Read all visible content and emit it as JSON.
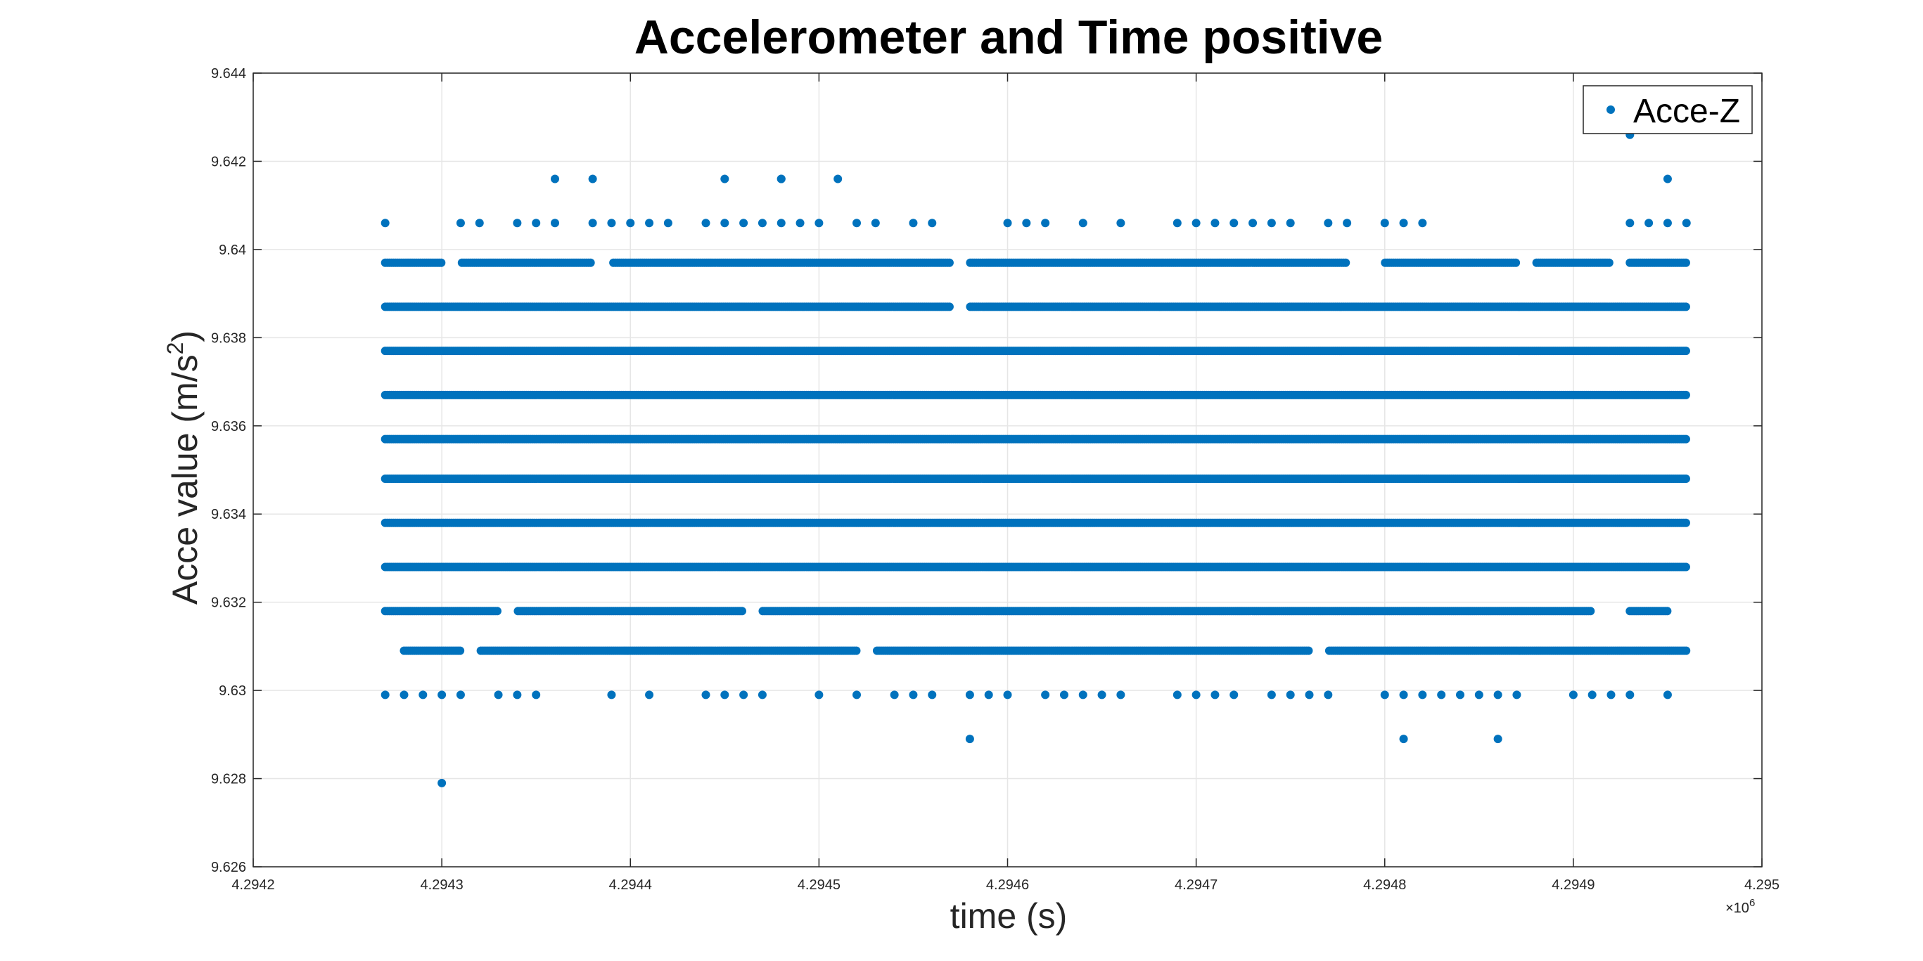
{
  "chart_data": {
    "type": "scatter",
    "title": "Accelerometer and Time positive",
    "xlabel": "time (s)",
    "ylabel": "Acce value (m/s²)",
    "ylabel_parts": {
      "main": "Acce value (m/s",
      "superscript": "2",
      "close": ")"
    },
    "x_exponent_label": {
      "base": "×10",
      "exponent": "6"
    },
    "xlim": [
      4.2942,
      4.295
    ],
    "ylim": [
      9.626,
      9.644
    ],
    "x_ticks": [
      4.2942,
      4.2943,
      4.2944,
      4.2945,
      4.2946,
      4.2947,
      4.2948,
      4.2949,
      4.295
    ],
    "x_tick_labels": [
      "4.2942",
      "4.2943",
      "4.2944",
      "4.2945",
      "4.2946",
      "4.2947",
      "4.2948",
      "4.2949",
      "4.295"
    ],
    "y_ticks": [
      9.626,
      9.628,
      9.63,
      9.632,
      9.634,
      9.636,
      9.638,
      9.64,
      9.642,
      9.644
    ],
    "y_tick_labels": [
      "9.626",
      "9.628",
      "9.63",
      "9.632",
      "9.634",
      "9.636",
      "9.638",
      "9.64",
      "9.642",
      "9.644"
    ],
    "grid": true,
    "legend_position": "top-right",
    "marker_color": "#0072BD",
    "series": [
      {
        "name": "Acce-Z",
        "levels": [
          {
            "y": 9.6279,
            "x": [
              4.2943
            ]
          },
          {
            "y": 9.6289,
            "x": [
              4.29458,
              4.29481,
              4.29486
            ]
          },
          {
            "y": 9.6299,
            "x": [
              4.29427,
              4.29428,
              4.29429,
              4.2943,
              4.29431,
              4.29433,
              4.29434,
              4.29435,
              4.29439,
              4.29441,
              4.29444,
              4.29445,
              4.29446,
              4.29447,
              4.2945,
              4.29452,
              4.29454,
              4.29455,
              4.29456,
              4.29458,
              4.29459,
              4.2946,
              4.29462,
              4.29463,
              4.29464,
              4.29465,
              4.29466,
              4.29469,
              4.2947,
              4.29471,
              4.29472,
              4.29474,
              4.29475,
              4.29476,
              4.29477,
              4.2948,
              4.29481,
              4.29482,
              4.29483,
              4.29484,
              4.29485,
              4.29486,
              4.29487,
              4.2949,
              4.29491,
              4.29492,
              4.29493,
              4.29495
            ]
          },
          {
            "y": 9.6309,
            "x_range": [
              4.29428,
              4.29496
            ],
            "gaps": [
              [
                4.29431,
                4.29432
              ],
              [
                4.29452,
                4.29453
              ],
              [
                4.29476,
                4.29477
              ]
            ]
          },
          {
            "y": 9.6318,
            "x_range": [
              4.29427,
              4.29495
            ],
            "gaps": [
              [
                4.29433,
                4.29434
              ],
              [
                4.29446,
                4.29447
              ],
              [
                4.29491,
                4.29493
              ]
            ]
          },
          {
            "y": 9.6328,
            "x_range": [
              4.29427,
              4.29496
            ],
            "gaps": []
          },
          {
            "y": 9.6338,
            "x_range": [
              4.29427,
              4.29496
            ],
            "gaps": []
          },
          {
            "y": 9.6348,
            "x_range": [
              4.29427,
              4.29496
            ],
            "gaps": []
          },
          {
            "y": 9.6357,
            "x_range": [
              4.29427,
              4.29496
            ],
            "gaps": []
          },
          {
            "y": 9.6367,
            "x_range": [
              4.29427,
              4.29496
            ],
            "gaps": []
          },
          {
            "y": 9.6377,
            "x_range": [
              4.29427,
              4.29496
            ],
            "gaps": []
          },
          {
            "y": 9.6387,
            "x_range": [
              4.29427,
              4.29496
            ],
            "gaps": [
              [
                4.29457,
                4.29458
              ]
            ]
          },
          {
            "y": 9.6397,
            "x_range": [
              4.29427,
              4.29496
            ],
            "gaps": [
              [
                4.2943,
                4.29431
              ],
              [
                4.29438,
                4.29439
              ],
              [
                4.29457,
                4.29458
              ],
              [
                4.29478,
                4.2948
              ],
              [
                4.29487,
                4.29488
              ],
              [
                4.29492,
                4.29493
              ]
            ]
          },
          {
            "y": 9.6406,
            "x": [
              4.29427,
              4.29431,
              4.29432,
              4.29434,
              4.29435,
              4.29436,
              4.29438,
              4.29439,
              4.2944,
              4.29441,
              4.29442,
              4.29444,
              4.29445,
              4.29446,
              4.29447,
              4.29448,
              4.29449,
              4.2945,
              4.29452,
              4.29453,
              4.29455,
              4.29456,
              4.2946,
              4.29461,
              4.29462,
              4.29464,
              4.29466,
              4.29469,
              4.2947,
              4.29471,
              4.29472,
              4.29473,
              4.29474,
              4.29475,
              4.29477,
              4.29478,
              4.2948,
              4.29481,
              4.29482,
              4.29493,
              4.29494,
              4.29495,
              4.29496
            ]
          },
          {
            "y": 9.6416,
            "x": [
              4.29436,
              4.29438,
              4.29445,
              4.29448,
              4.29448,
              4.29451,
              4.29495
            ]
          },
          {
            "y": 9.6426,
            "x": [
              4.29493
            ]
          }
        ]
      }
    ]
  }
}
